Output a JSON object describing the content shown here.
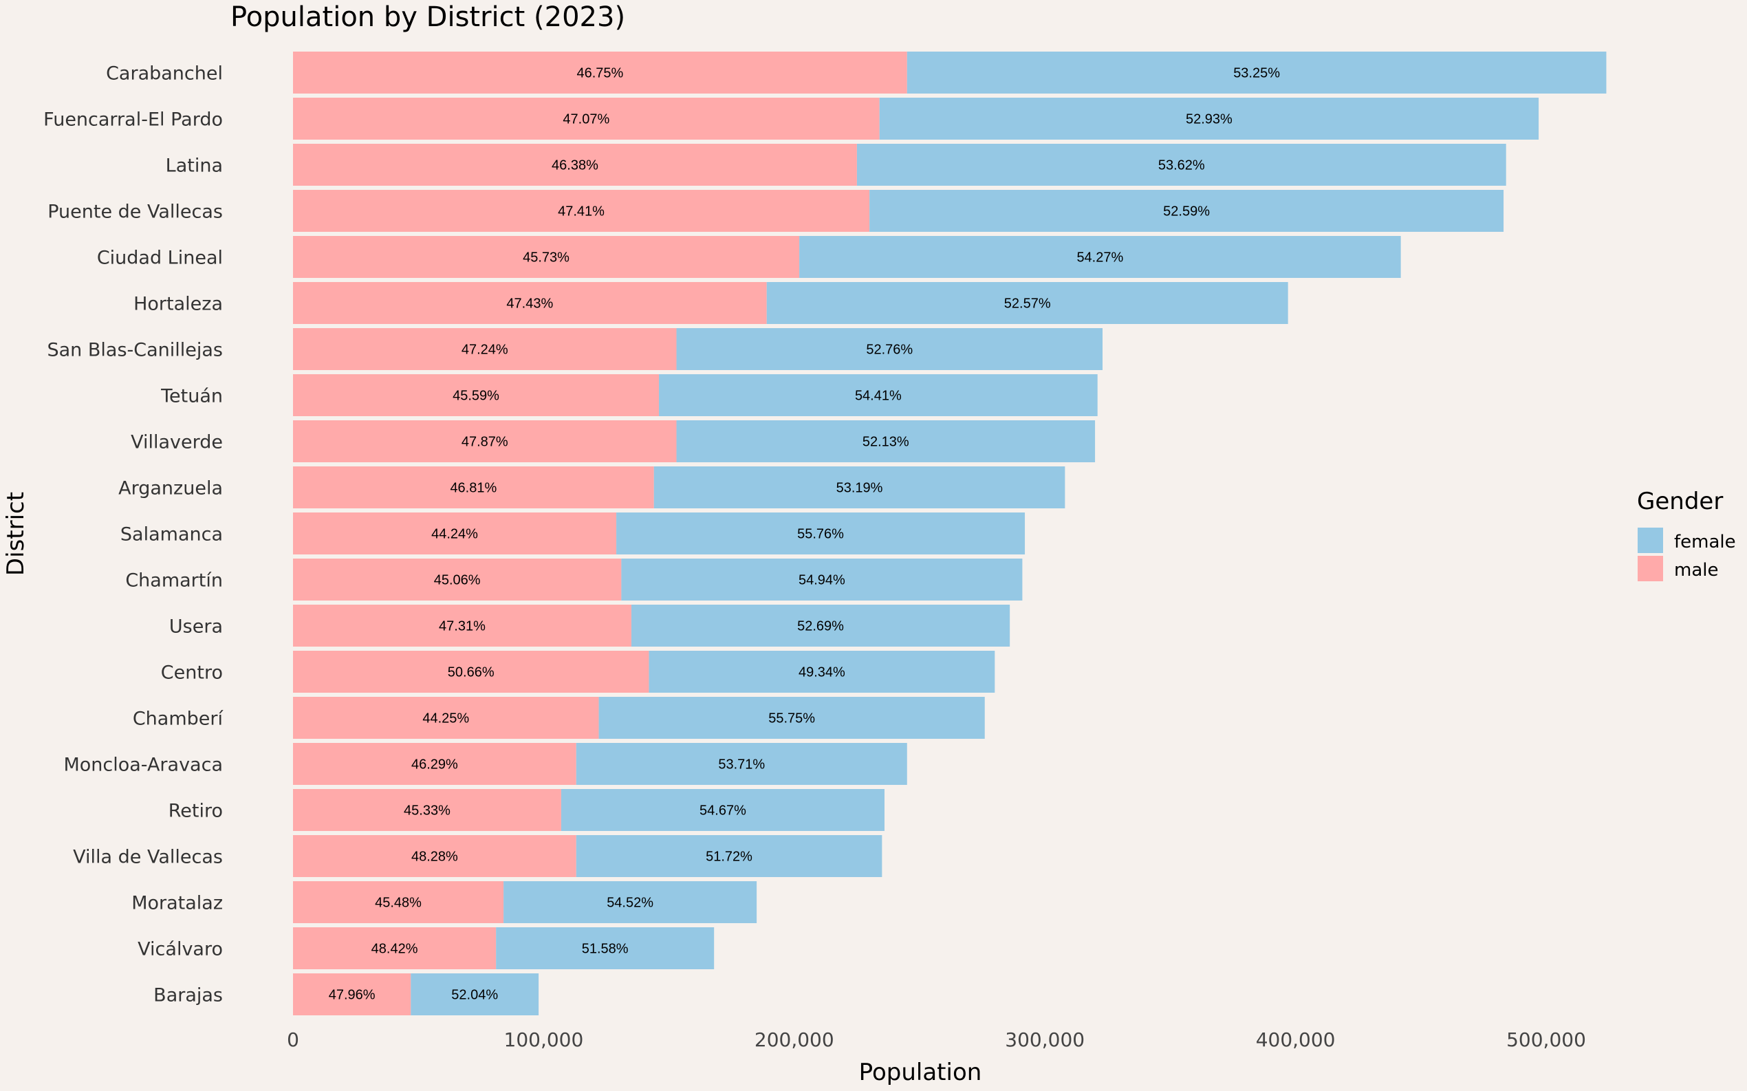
{
  "chart_data": {
    "type": "bar",
    "orientation": "horizontal",
    "stacked": true,
    "title": "Population by District (2023)",
    "xlabel": "Population",
    "ylabel": "District",
    "xlim": [
      0,
      560000
    ],
    "x_ticks": [
      0,
      100000,
      200000,
      300000,
      400000,
      500000
    ],
    "x_tick_labels": [
      "0",
      "100,000",
      "200,000",
      "300,000",
      "400,000",
      "500,000"
    ],
    "grid": false,
    "legend": {
      "title": "Gender",
      "position": "right",
      "entries": [
        {
          "name": "female",
          "color": "#95c8e4"
        },
        {
          "name": "male",
          "color": "#ffaaaa"
        }
      ]
    },
    "categories": [
      "Carabanchel",
      "Fuencarral-El Pardo",
      "Latina",
      "Puente de Vallecas",
      "Ciudad Lineal",
      "Hortaleza",
      "San Blas-Canillejas",
      "Tetuán",
      "Villaverde",
      "Arganzuela",
      "Salamanca",
      "Chamartín",
      "Usera",
      "Centro",
      "Chamberí",
      "Moncloa-Aravaca",
      "Retiro",
      "Villa de Vallecas",
      "Moratalaz",
      "Vicálvaro",
      "Barajas"
    ],
    "series": [
      {
        "name": "male",
        "color": "#ffaaaa",
        "values": [
          245000,
          234000,
          225000,
          230000,
          202000,
          189000,
          153000,
          146000,
          153000,
          144000,
          129000,
          131000,
          135000,
          142000,
          122000,
          113000,
          107000,
          113000,
          84000,
          81000,
          47000
        ],
        "labels": [
          "46.75%",
          "47.07%",
          "46.38%",
          "47.41%",
          "45.73%",
          "47.43%",
          "47.24%",
          "45.59%",
          "47.87%",
          "46.81%",
          "44.24%",
          "45.06%",
          "47.31%",
          "50.66%",
          "44.25%",
          "46.29%",
          "45.33%",
          "48.28%",
          "45.48%",
          "48.42%",
          "47.96%"
        ]
      },
      {
        "name": "female",
        "color": "#95c8e4",
        "values": [
          279000,
          263000,
          259000,
          253000,
          240000,
          208000,
          170000,
          175000,
          167000,
          164000,
          163000,
          160000,
          151000,
          138000,
          154000,
          132000,
          129000,
          122000,
          101000,
          87000,
          51000
        ],
        "labels": [
          "53.25%",
          "52.93%",
          "53.62%",
          "52.59%",
          "54.27%",
          "52.57%",
          "52.76%",
          "54.41%",
          "52.13%",
          "53.19%",
          "55.76%",
          "54.94%",
          "52.69%",
          "49.34%",
          "55.75%",
          "53.71%",
          "54.67%",
          "51.72%",
          "54.52%",
          "51.58%",
          "52.04%"
        ]
      }
    ]
  }
}
